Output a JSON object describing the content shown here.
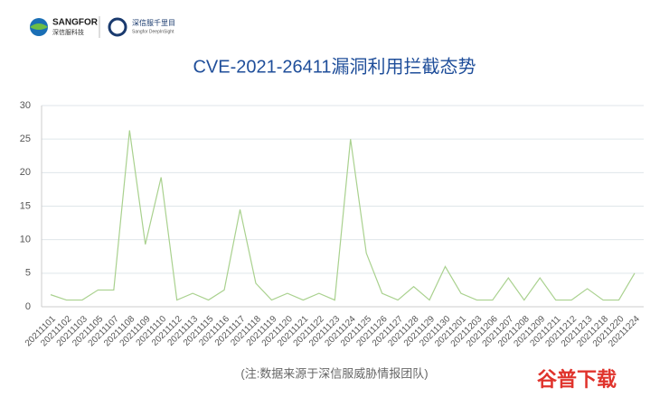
{
  "header": {
    "brand": "SANGFOR",
    "brand_sub": "深信服科技",
    "product": "深信服千里目",
    "product_sub": "Sangfor DeepInSight"
  },
  "chart_data": {
    "type": "line",
    "title": "CVE-2021-26411漏洞利用拦截态势",
    "categories": [
      "20211101",
      "20211102",
      "20211103",
      "20211105",
      "20211107",
      "20211108",
      "20211109",
      "20211110",
      "20211112",
      "20211113",
      "20211115",
      "20211116",
      "20211117",
      "20211118",
      "20211119",
      "20211120",
      "20211121",
      "20211122",
      "20211123",
      "20211124",
      "20211125",
      "20211126",
      "20211127",
      "20211128",
      "20211129",
      "20211130",
      "20211201",
      "20211203",
      "20211206",
      "20211207",
      "20211208",
      "20211209",
      "20211211",
      "20211212",
      "20211213",
      "20211218",
      "20211220",
      "20211224"
    ],
    "values": [
      1.8,
      1,
      1,
      2.5,
      2.5,
      26.3,
      9.3,
      19.3,
      1,
      2,
      1,
      2.5,
      14.5,
      3.5,
      1,
      2,
      1,
      2,
      1,
      25,
      8,
      2,
      1,
      3,
      1,
      6,
      2,
      1,
      1,
      4.3,
      1,
      4.3,
      1,
      1,
      2.7,
      1,
      1,
      5
    ],
    "color": "#a9d18e",
    "ylim": [
      0,
      30
    ],
    "yticks": [
      0,
      5,
      10,
      15,
      20,
      25,
      30
    ],
    "grid": true,
    "footnote": "(注:数据来源于深信服威胁情报团队)"
  },
  "watermark": "谷普下载"
}
